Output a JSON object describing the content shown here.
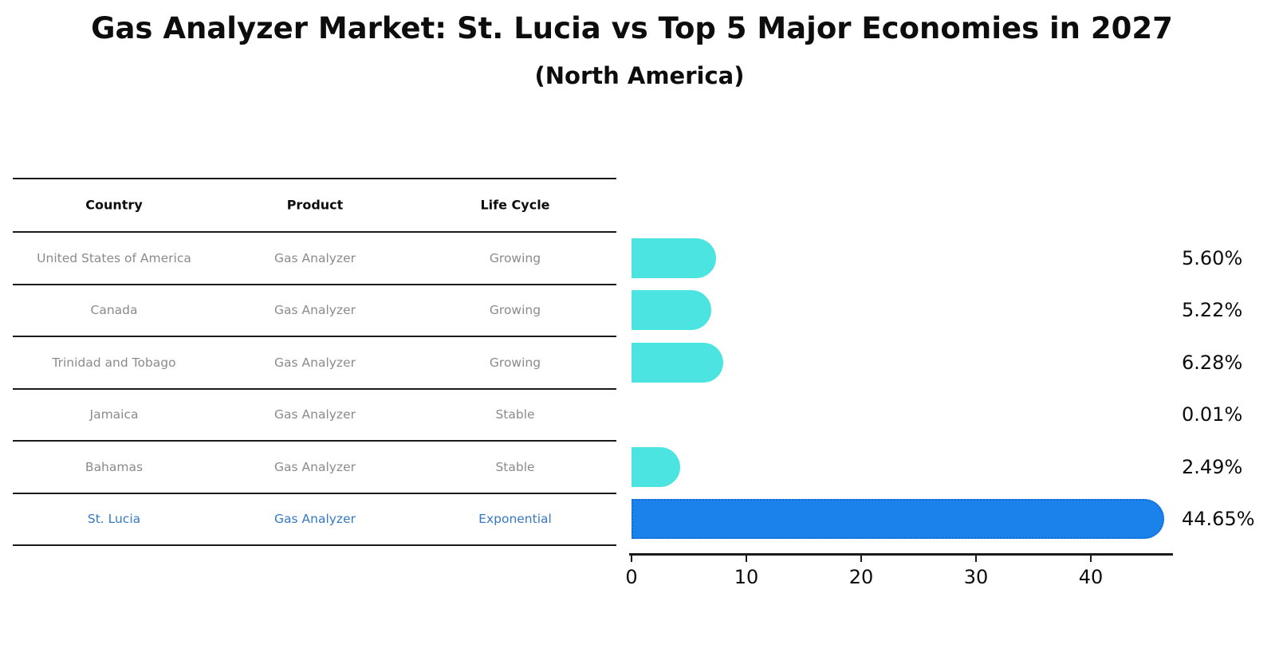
{
  "title": "Gas Analyzer Market: St. Lucia vs Top 5 Major Economies in 2027",
  "subtitle": "(North America)",
  "table": {
    "headers": {
      "country": "Country",
      "product": "Product",
      "life_cycle": "Life Cycle"
    },
    "rows": [
      {
        "country": "United States of America",
        "product": "Gas Analyzer",
        "life_cycle": "Growing",
        "value": 5.6,
        "value_label": "5.60%",
        "highlight": false
      },
      {
        "country": "Canada",
        "product": "Gas Analyzer",
        "life_cycle": "Growing",
        "value": 5.22,
        "value_label": "5.22%",
        "highlight": false
      },
      {
        "country": "Trinidad and Tobago",
        "product": "Gas Analyzer",
        "life_cycle": "Growing",
        "value": 6.28,
        "value_label": "6.28%",
        "highlight": false
      },
      {
        "country": "Jamaica",
        "product": "Gas Analyzer",
        "life_cycle": "Stable",
        "value": 0.01,
        "value_label": "0.01%",
        "highlight": false
      },
      {
        "country": "Bahamas",
        "product": "Gas Analyzer",
        "life_cycle": "Stable",
        "value": 2.49,
        "value_label": "2.49%",
        "highlight": false
      },
      {
        "country": "St. Lucia",
        "product": "Gas Analyzer",
        "life_cycle": "Exponential",
        "value": 44.65,
        "value_label": "44.65%",
        "highlight": true
      }
    ]
  },
  "chart_data": {
    "type": "bar",
    "orientation": "horizontal",
    "title": "Gas Analyzer Market: St. Lucia vs Top 5 Major Economies in 2027",
    "subtitle": "(North America)",
    "categories": [
      "United States of America",
      "Canada",
      "Trinidad and Tobago",
      "Jamaica",
      "Bahamas",
      "St. Lucia"
    ],
    "values": [
      5.6,
      5.22,
      6.28,
      0.01,
      2.49,
      44.65
    ],
    "value_labels": [
      "5.60%",
      "5.22%",
      "6.28%",
      "0.01%",
      "2.49%",
      "44.65%"
    ],
    "highlight_index": 5,
    "xlabel": "",
    "ylabel": "",
    "x_ticks": [
      0,
      10,
      20,
      30,
      40
    ],
    "xlim": [
      0,
      47
    ],
    "grid": false,
    "legend": false,
    "colors": {
      "bar": "#4be4e0",
      "highlight_bar": "#1b82ec",
      "highlight_border": "#0f6bd7",
      "muted_text": "#8b8b8b",
      "highlight_text": "#3579c4",
      "axis": "#1a1a1a",
      "label_text": "#0d0d0d"
    }
  }
}
